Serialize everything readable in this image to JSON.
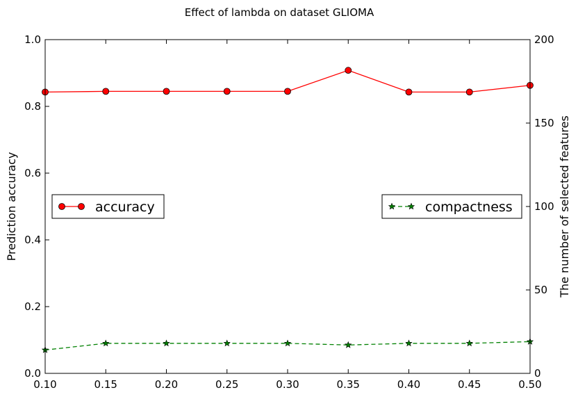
{
  "chart_data": {
    "type": "line",
    "title": "Effect of lambda on dataset GLIOMA",
    "xlabel": "",
    "ylabel": "Prediction accuracy",
    "ylabel_right": "The number of selected features",
    "x": [
      0.1,
      0.15,
      0.2,
      0.25,
      0.3,
      0.35,
      0.4,
      0.45,
      0.5
    ],
    "xlim": [
      0.1,
      0.5
    ],
    "ylim": [
      0.0,
      1.0
    ],
    "ylim_right": [
      0,
      200
    ],
    "x_ticks": [
      "0.10",
      "0.15",
      "0.20",
      "0.25",
      "0.30",
      "0.35",
      "0.40",
      "0.45",
      "0.50"
    ],
    "y_ticks": [
      "0.0",
      "0.2",
      "0.4",
      "0.6",
      "0.8",
      "1.0"
    ],
    "y_ticks_right": [
      "0",
      "50",
      "100",
      "150",
      "200"
    ],
    "grid": false,
    "series": [
      {
        "name": "accuracy",
        "axis": "left",
        "values": [
          0.843,
          0.845,
          0.845,
          0.845,
          0.845,
          0.908,
          0.843,
          0.843,
          0.863
        ],
        "color": "#ff0000",
        "marker": "circle",
        "line_style": "solid",
        "legend_position": "center-left"
      },
      {
        "name": "compactness",
        "axis": "right",
        "values": [
          14,
          18,
          18,
          18,
          18,
          17,
          18,
          18,
          19
        ],
        "color": "#008000",
        "marker": "star",
        "line_style": "dashed",
        "legend_position": "center-right"
      }
    ]
  }
}
